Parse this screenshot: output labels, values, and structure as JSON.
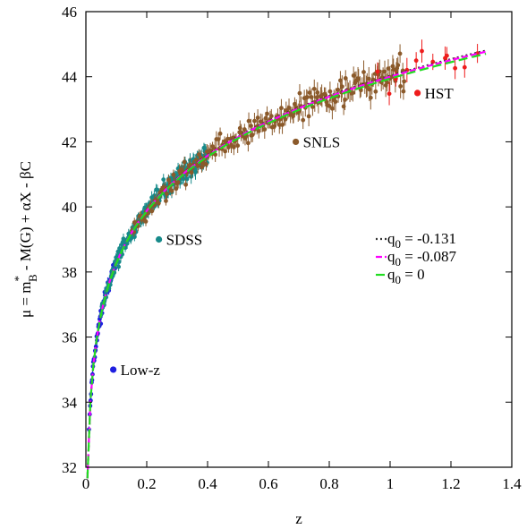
{
  "chart_data": {
    "type": "scatter",
    "xlabel": "z",
    "ylabel_parts": {
      "mu": "μ = m",
      "star": "*",
      "B": "B",
      "rest": " - M(G) + αX - βC"
    },
    "xlim": [
      0,
      1.4
    ],
    "ylim": [
      32,
      46
    ],
    "x_ticks": [
      0,
      0.2,
      0.4,
      0.6,
      0.8,
      1,
      1.2,
      1.4
    ],
    "x_tick_labels": [
      "0",
      "0.2",
      "0.4",
      "0.6",
      "0.8",
      "1",
      "1.2",
      "1.4"
    ],
    "y_ticks": [
      32,
      34,
      36,
      38,
      40,
      42,
      44,
      46
    ],
    "y_tick_labels": [
      "32",
      "34",
      "36",
      "38",
      "40",
      "42",
      "44",
      "46"
    ],
    "grid": false,
    "samples": [
      {
        "name": "Low-z",
        "color": "#1f1fe0",
        "label_x": 0.09,
        "label_y": 35.0,
        "x_range": [
          0.01,
          0.1
        ],
        "count": 60
      },
      {
        "name": "SDSS",
        "color": "#178a8a",
        "label_x": 0.24,
        "label_y": 39.0,
        "x_range": [
          0.05,
          0.4
        ],
        "count": 220
      },
      {
        "name": "SNLS",
        "color": "#8b5a2b",
        "label_x": 0.69,
        "label_y": 42.0,
        "x_range": [
          0.15,
          1.05
        ],
        "count": 220
      },
      {
        "name": "HST",
        "color": "#ee1c1c",
        "label_x": 1.09,
        "label_y": 43.5,
        "x_range": [
          0.95,
          1.3
        ],
        "count": 12
      }
    ],
    "curves": [
      {
        "q_main": "q",
        "q_sub": "0",
        "q_value": " = -0.131",
        "color": "#333333",
        "dash": "2,3",
        "q0": -0.131
      },
      {
        "q_main": "q",
        "q_sub": "0",
        "q_value": " = -0.087",
        "color": "#ff00ff",
        "dash": "7,3",
        "q0": -0.087
      },
      {
        "q_main": "q",
        "q_sub": "0",
        "q_value": " = 0",
        "color": "#22dd22",
        "dash": "10,5",
        "q0": 0
      }
    ]
  }
}
